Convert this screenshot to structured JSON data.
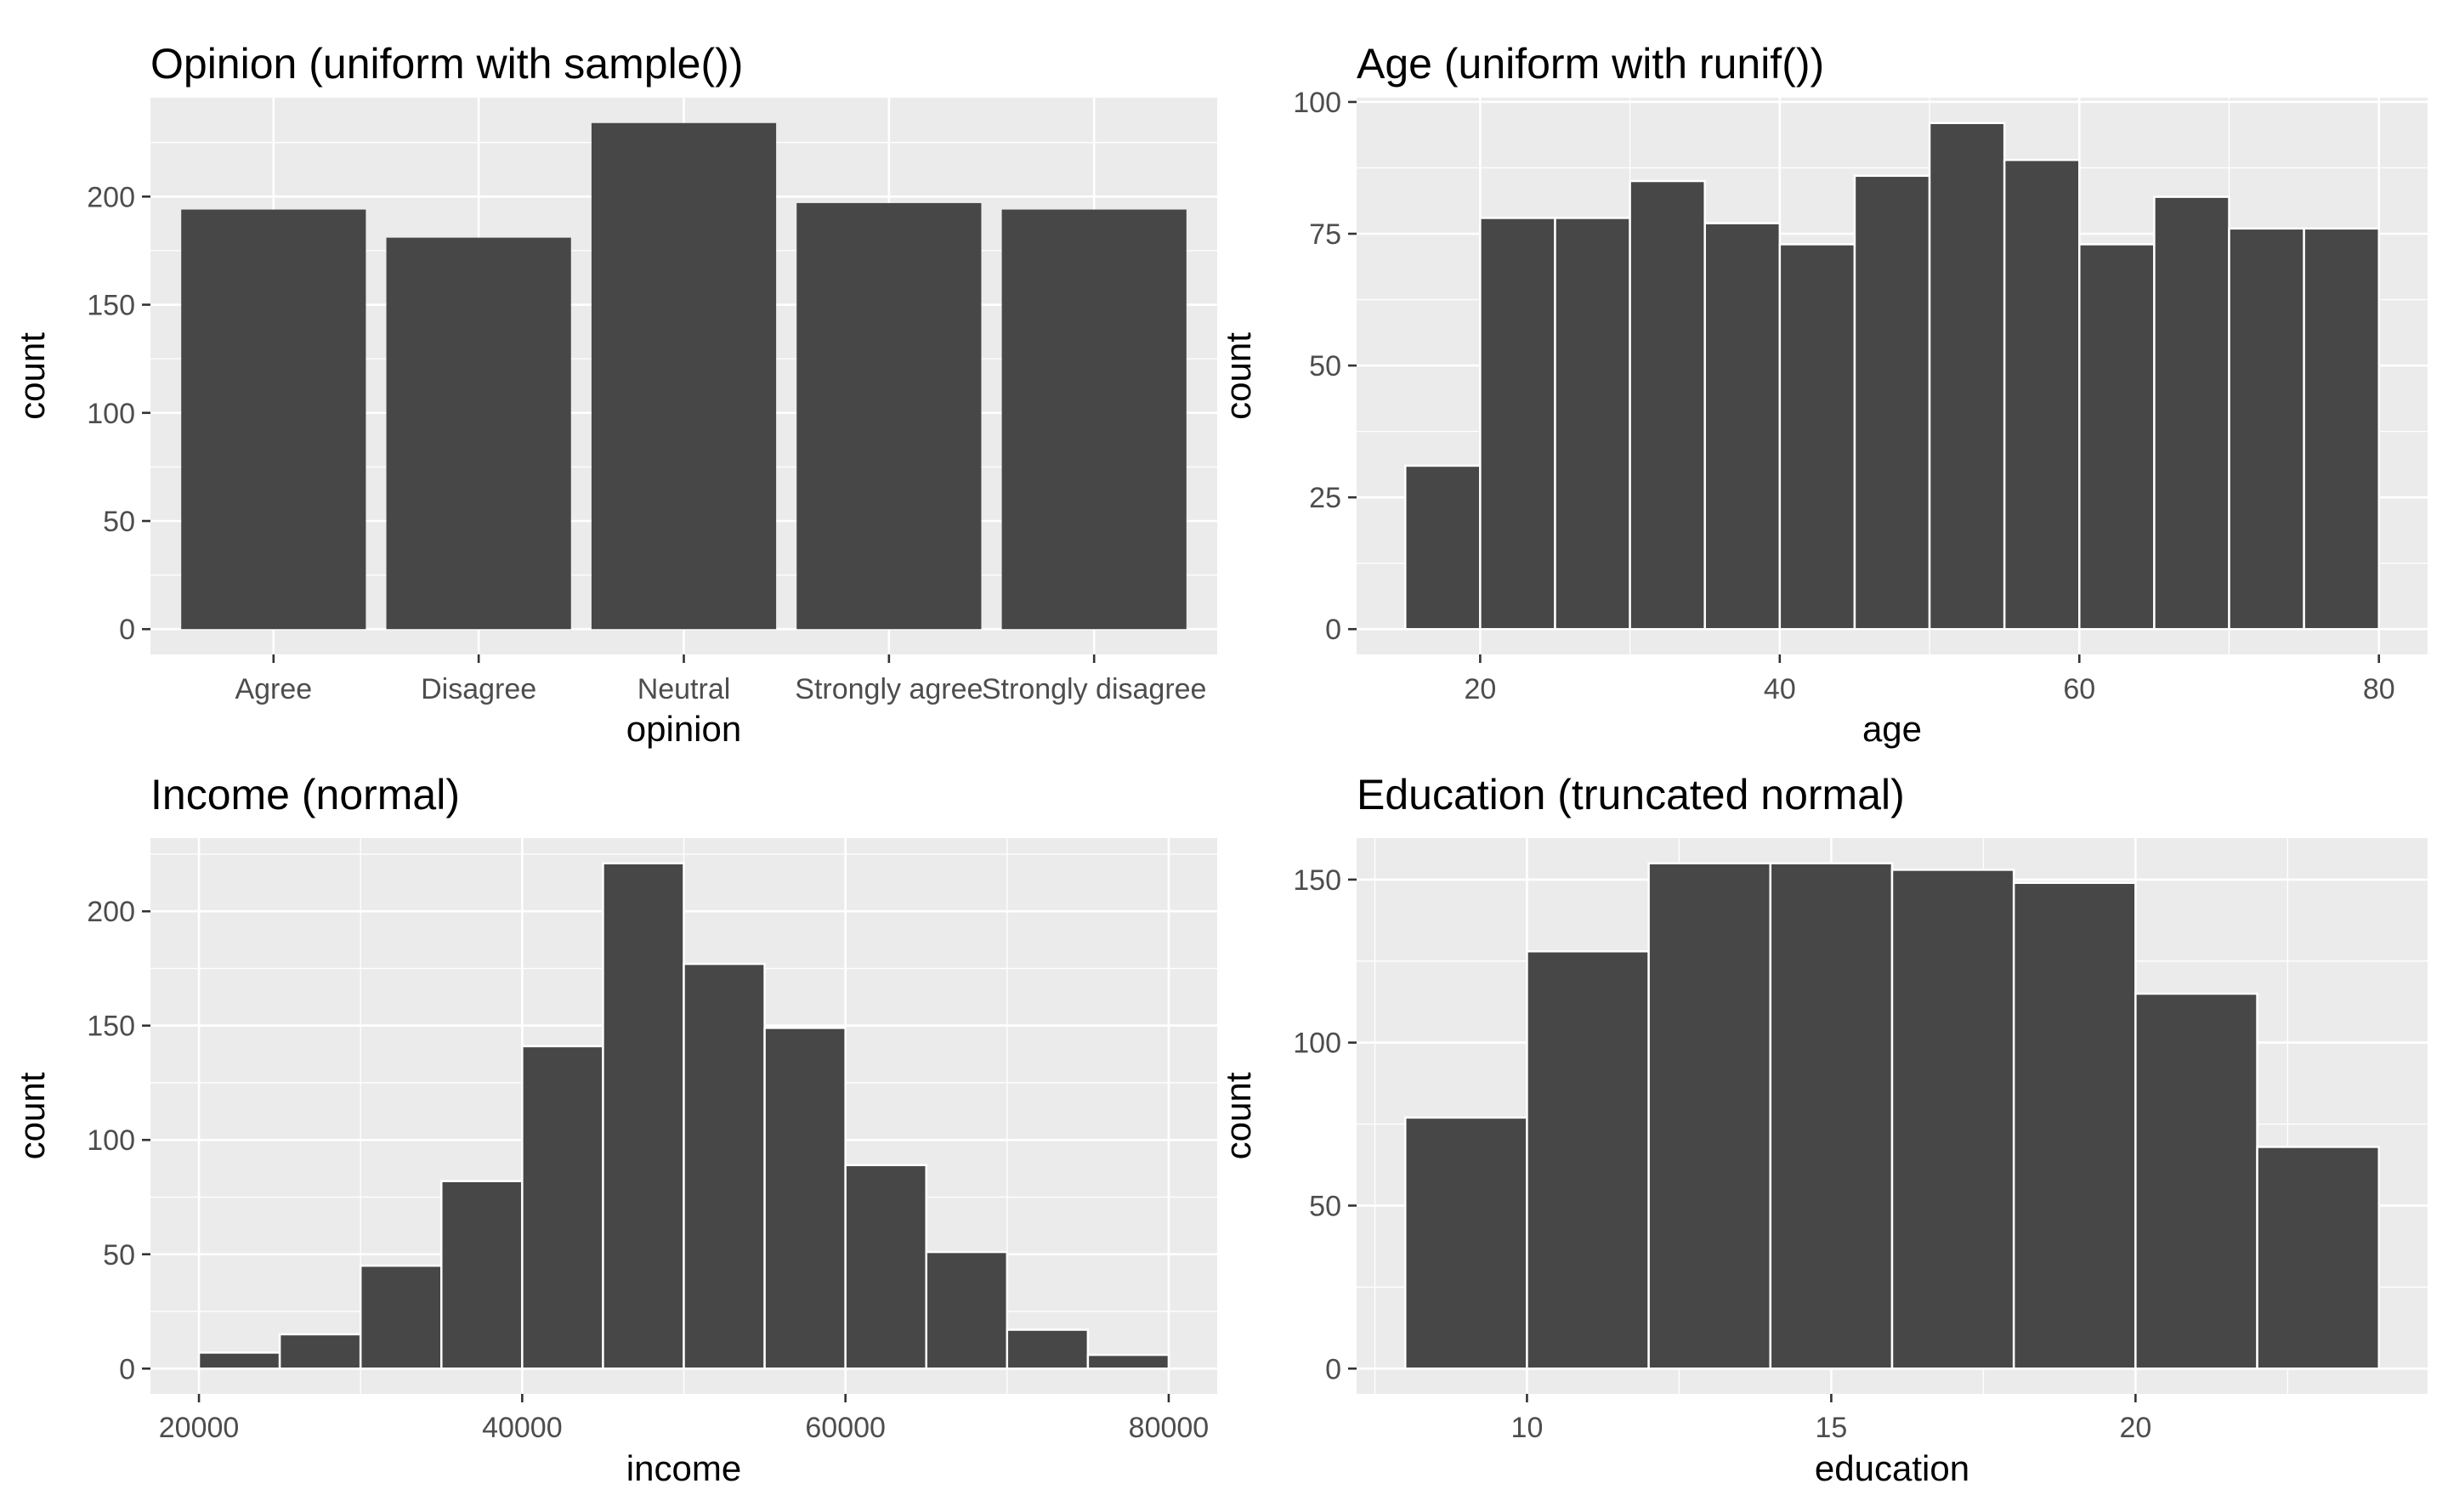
{
  "chart_data": [
    {
      "type": "bar",
      "title": "Opinion (uniform with sample())",
      "xlabel": "opinion",
      "ylabel": "count",
      "categories": [
        "Agree",
        "Disagree",
        "Neutral",
        "Strongly agree",
        "Strongly disagree"
      ],
      "values": [
        194,
        181,
        234,
        197,
        194
      ],
      "ylim": [
        -11.7,
        245.7
      ],
      "yticks": [
        0,
        50,
        100,
        150,
        200
      ],
      "ytick_labels": [
        "0",
        "50",
        "100",
        "150",
        "200"
      ],
      "grid": true
    },
    {
      "type": "bar",
      "title": "Age (uniform with runif())",
      "xlabel": "age",
      "ylabel": "count",
      "bin_edges": [
        15,
        20,
        25,
        30,
        35,
        40,
        45,
        50,
        55,
        60,
        65,
        70,
        75,
        80
      ],
      "values": [
        31,
        78,
        78,
        85,
        77,
        73,
        86,
        96,
        89,
        73,
        82,
        76,
        76
      ],
      "xlim": [
        11.75,
        83.25
      ],
      "ylim": [
        -4.8,
        100.8
      ],
      "xticks": [
        20,
        40,
        60,
        80
      ],
      "xtick_labels": [
        "20",
        "40",
        "60",
        "80"
      ],
      "yticks": [
        0,
        25,
        50,
        75,
        100
      ],
      "ytick_labels": [
        "0",
        "25",
        "50",
        "75",
        "100"
      ],
      "grid": true
    },
    {
      "type": "bar",
      "title": "Income (normal)",
      "xlabel": "income",
      "ylabel": "count",
      "bin_edges": [
        20000,
        25000,
        30000,
        35000,
        40000,
        45000,
        50000,
        55000,
        60000,
        65000,
        70000,
        75000,
        80000
      ],
      "values": [
        7,
        15,
        45,
        82,
        141,
        221,
        177,
        149,
        89,
        51,
        17,
        6
      ],
      "xlim": [
        17000,
        83000
      ],
      "ylim": [
        -11.05,
        232.05
      ],
      "xticks": [
        20000,
        40000,
        60000,
        80000
      ],
      "xtick_labels": [
        "20000",
        "40000",
        "60000",
        "80000"
      ],
      "yticks": [
        0,
        50,
        100,
        150,
        200
      ],
      "ytick_labels": [
        "0",
        "50",
        "100",
        "150",
        "200"
      ],
      "grid": true
    },
    {
      "type": "bar",
      "title": "Education (truncated normal)",
      "xlabel": "education",
      "ylabel": "count",
      "bin_edges": [
        8,
        10,
        12,
        14,
        16,
        18,
        20,
        22,
        24
      ],
      "values": [
        77,
        128,
        155,
        155,
        153,
        149,
        115,
        68
      ],
      "xlim": [
        7.2,
        24.8
      ],
      "ylim": [
        -7.75,
        162.75
      ],
      "xticks": [
        10,
        15,
        20
      ],
      "xtick_labels": [
        "10",
        "15",
        "20"
      ],
      "yticks": [
        0,
        50,
        100,
        150
      ],
      "ytick_labels": [
        "0",
        "50",
        "100",
        "150"
      ],
      "grid": true
    }
  ],
  "colors": {
    "panel_background": "#ebebeb",
    "grid": "#ffffff",
    "bar_fill": "#474747",
    "bar_outline": "#ffffff",
    "tick_text": "#4d4d4d"
  }
}
